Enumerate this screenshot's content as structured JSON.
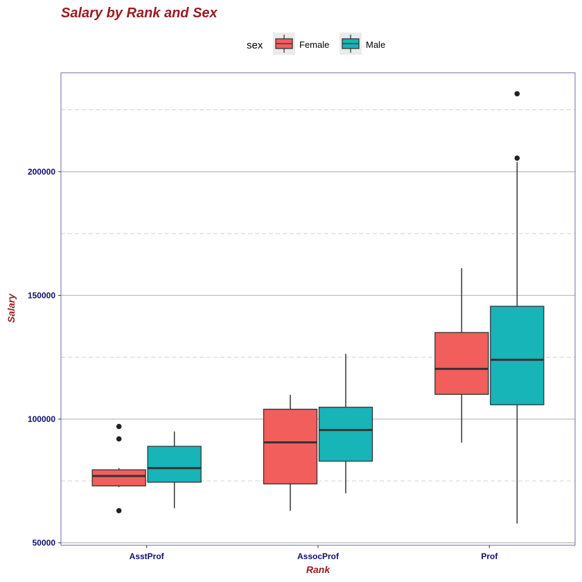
{
  "chart_data": {
    "type": "box",
    "title": "Salary by Rank and Sex",
    "xlabel": "Rank",
    "ylabel": "Salary",
    "categories": [
      "AsstProf",
      "AssocProf",
      "Prof"
    ],
    "ylim": [
      49000,
      240000
    ],
    "y_major_ticks": [
      50000,
      100000,
      150000,
      200000
    ],
    "y_minor_gridlines": [
      75000,
      125000,
      175000,
      225000
    ],
    "grid": true,
    "legend": {
      "title": "sex",
      "position": "top",
      "entries": [
        "Female",
        "Male"
      ]
    },
    "series": [
      {
        "name": "Female",
        "color": "#F8766D",
        "boxes": [
          {
            "category": "AsstProf",
            "whisker_low": 72500,
            "q1": 73000,
            "median": 77000,
            "q3": 79500,
            "whisker_high": 80200,
            "outliers": [
              63000,
              92000,
              97000
            ]
          },
          {
            "category": "AssocProf",
            "whisker_low": 62900,
            "q1": 73800,
            "median": 90600,
            "q3": 104000,
            "whisker_high": 109800,
            "outliers": []
          },
          {
            "category": "Prof",
            "whisker_low": 90500,
            "q1": 110000,
            "median": 120300,
            "q3": 135000,
            "whisker_high": 161000,
            "outliers": []
          }
        ]
      },
      {
        "name": "Male",
        "color": "#00BFC4",
        "boxes": [
          {
            "category": "AsstProf",
            "whisker_low": 64000,
            "q1": 74500,
            "median": 80200,
            "q3": 89000,
            "whisker_high": 95000,
            "outliers": []
          },
          {
            "category": "AssocProf",
            "whisker_low": 70000,
            "q1": 83000,
            "median": 95600,
            "q3": 104800,
            "whisker_high": 126400,
            "outliers": []
          },
          {
            "category": "Prof",
            "whisker_low": 57800,
            "q1": 105800,
            "median": 124000,
            "q3": 145600,
            "whisker_high": 204000,
            "outliers": [
              205500,
              231500
            ]
          }
        ]
      }
    ]
  },
  "colors": {
    "title": "#9B1B22",
    "axis_title": "#9B1B22",
    "tick_label": "#0D0D73",
    "panel_border": "#6A6AB0",
    "major_grid": "#BEBEBE",
    "minor_grid": "#D0D0D0",
    "female_fill": "#F15E5C",
    "male_fill": "#17B4B8",
    "box_line": "#333333",
    "legend_key_bg": "#EBEBEB"
  }
}
